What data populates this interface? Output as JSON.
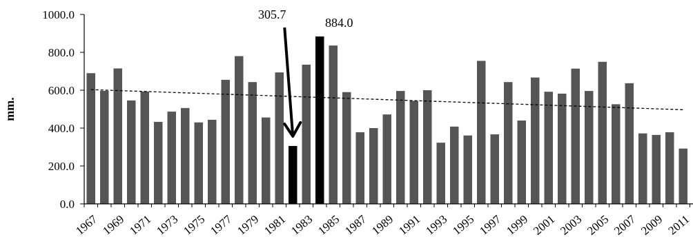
{
  "chart_data": {
    "type": "bar",
    "ylabel": "mm.",
    "xlabel": "",
    "title": "",
    "ylim": [
      0,
      1000
    ],
    "y_ticks": [
      0,
      200,
      400,
      600,
      800,
      1000
    ],
    "y_tick_labels": [
      "0.0",
      "200.0",
      "400.0",
      "600.0",
      "800.0",
      "1000.0"
    ],
    "grid": false,
    "legend": "none",
    "categories": [
      "1967",
      "1968",
      "1969",
      "1970",
      "1971",
      "1972",
      "1973",
      "1974",
      "1975",
      "1976",
      "1977",
      "1978",
      "1979",
      "1980",
      "1981",
      "1982",
      "1983",
      "1984",
      "1985",
      "1986",
      "1987",
      "1988",
      "1989",
      "1990",
      "1991",
      "1992",
      "1993",
      "1994",
      "1995",
      "1996",
      "1997",
      "1998",
      "1999",
      "2000",
      "2001",
      "2002",
      "2003",
      "2004",
      "2005",
      "2006",
      "2007",
      "2008",
      "2009",
      "2010",
      "2011"
    ],
    "x_tick_labels": [
      "1967",
      "1969",
      "1971",
      "1973",
      "1975",
      "1977",
      "1979",
      "1981",
      "1983",
      "1985",
      "1987",
      "1989",
      "1991",
      "1993",
      "1995",
      "1997",
      "1999",
      "2001",
      "2003",
      "2005",
      "2007",
      "2009",
      "2011"
    ],
    "values": [
      690,
      597,
      715,
      546,
      593,
      433,
      487,
      506,
      430,
      444,
      655,
      780,
      643,
      456,
      694,
      305.7,
      735,
      884.0,
      836,
      590,
      378,
      400,
      472,
      596,
      544,
      600,
      323,
      408,
      361,
      755,
      367,
      643,
      440,
      667,
      592,
      582,
      714,
      596,
      750,
      526,
      637,
      372,
      364,
      378,
      292
    ],
    "highlight_categories": [
      "1982",
      "1984"
    ],
    "trendline": {
      "style": "dashed",
      "start": 603,
      "end": 497
    },
    "annotations": [
      {
        "text": "305.7",
        "category": "1982",
        "arrow": true
      },
      {
        "text": "884.0",
        "category": "1984",
        "arrow": false
      }
    ],
    "colors": {
      "bar": "#555555",
      "highlight": "#000000",
      "trend": "#000000",
      "axis": "#000000"
    }
  }
}
